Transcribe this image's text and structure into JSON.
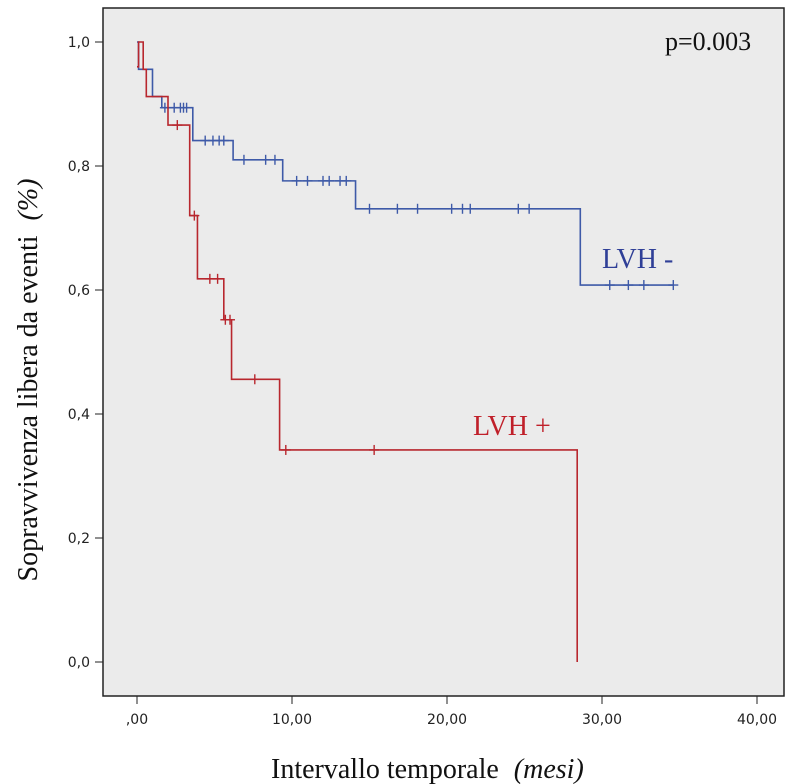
{
  "chart_data": {
    "type": "line",
    "xlabel": "Intervallo temporale",
    "xlabel_unit": "(mesi)",
    "ylabel": "Sopravvivenza libera da eventi",
    "ylabel_unit": "(%)",
    "annotation": "p=0.003",
    "xlim": [
      0,
      40
    ],
    "ylim": [
      0,
      1
    ],
    "x_ticks": [
      0,
      10,
      20,
      30,
      40
    ],
    "x_tick_labels": [
      ",00",
      "10,00",
      "20,00",
      "30,00",
      "40,00"
    ],
    "y_ticks": [
      0,
      0.2,
      0.4,
      0.6,
      0.8,
      1.0
    ],
    "y_tick_labels": [
      "0,0",
      "0,2",
      "0,4",
      "0,6",
      "0,8",
      "1,0"
    ],
    "grid": false,
    "plot_background": "#ebebeb",
    "series": [
      {
        "name": "LVH -",
        "color": "#3e5aa8",
        "label_color": "#2f3f97",
        "steps": [
          [
            0,
            1.0
          ],
          [
            0.1,
            0.956
          ],
          [
            1.0,
            0.912
          ],
          [
            1.6,
            0.894
          ],
          [
            3.6,
            0.841
          ],
          [
            6.2,
            0.81
          ],
          [
            9.4,
            0.776
          ],
          [
            14.1,
            0.731
          ],
          [
            28.6,
            0.608
          ],
          [
            34.6,
            0.608
          ]
        ],
        "censors": [
          [
            1.8,
            0.894
          ],
          [
            2.4,
            0.894
          ],
          [
            2.8,
            0.894
          ],
          [
            3.0,
            0.894
          ],
          [
            3.2,
            0.894
          ],
          [
            4.4,
            0.841
          ],
          [
            4.9,
            0.841
          ],
          [
            5.3,
            0.841
          ],
          [
            5.6,
            0.841
          ],
          [
            6.9,
            0.81
          ],
          [
            8.3,
            0.81
          ],
          [
            8.9,
            0.81
          ],
          [
            10.3,
            0.776
          ],
          [
            11.0,
            0.776
          ],
          [
            12.0,
            0.776
          ],
          [
            12.4,
            0.776
          ],
          [
            13.1,
            0.776
          ],
          [
            13.5,
            0.776
          ],
          [
            15.0,
            0.731
          ],
          [
            16.8,
            0.731
          ],
          [
            18.1,
            0.731
          ],
          [
            20.3,
            0.731
          ],
          [
            21.0,
            0.731
          ],
          [
            21.5,
            0.731
          ],
          [
            24.6,
            0.731
          ],
          [
            25.3,
            0.731
          ],
          [
            30.5,
            0.608
          ],
          [
            31.7,
            0.608
          ],
          [
            32.7,
            0.608
          ],
          [
            34.6,
            0.608
          ]
        ]
      },
      {
        "name": "LVH +",
        "color": "#b8272e",
        "label_color": "#c0202a",
        "steps": [
          [
            0,
            0.96
          ],
          [
            0.1,
            1.0
          ],
          [
            0.4,
            0.956
          ],
          [
            0.6,
            0.912
          ],
          [
            2.0,
            0.866
          ],
          [
            3.4,
            0.72
          ],
          [
            3.9,
            0.618
          ],
          [
            5.6,
            0.552
          ],
          [
            6.1,
            0.456
          ],
          [
            9.2,
            0.342
          ],
          [
            28.4,
            0.342
          ],
          [
            28.4,
            0.0
          ]
        ],
        "censors": [
          [
            2.6,
            0.866
          ],
          [
            3.7,
            0.72
          ],
          [
            4.7,
            0.618
          ],
          [
            5.2,
            0.618
          ],
          [
            5.7,
            0.552
          ],
          [
            6.0,
            0.552
          ],
          [
            7.6,
            0.456
          ],
          [
            9.6,
            0.342
          ],
          [
            15.3,
            0.342
          ]
        ]
      }
    ]
  }
}
